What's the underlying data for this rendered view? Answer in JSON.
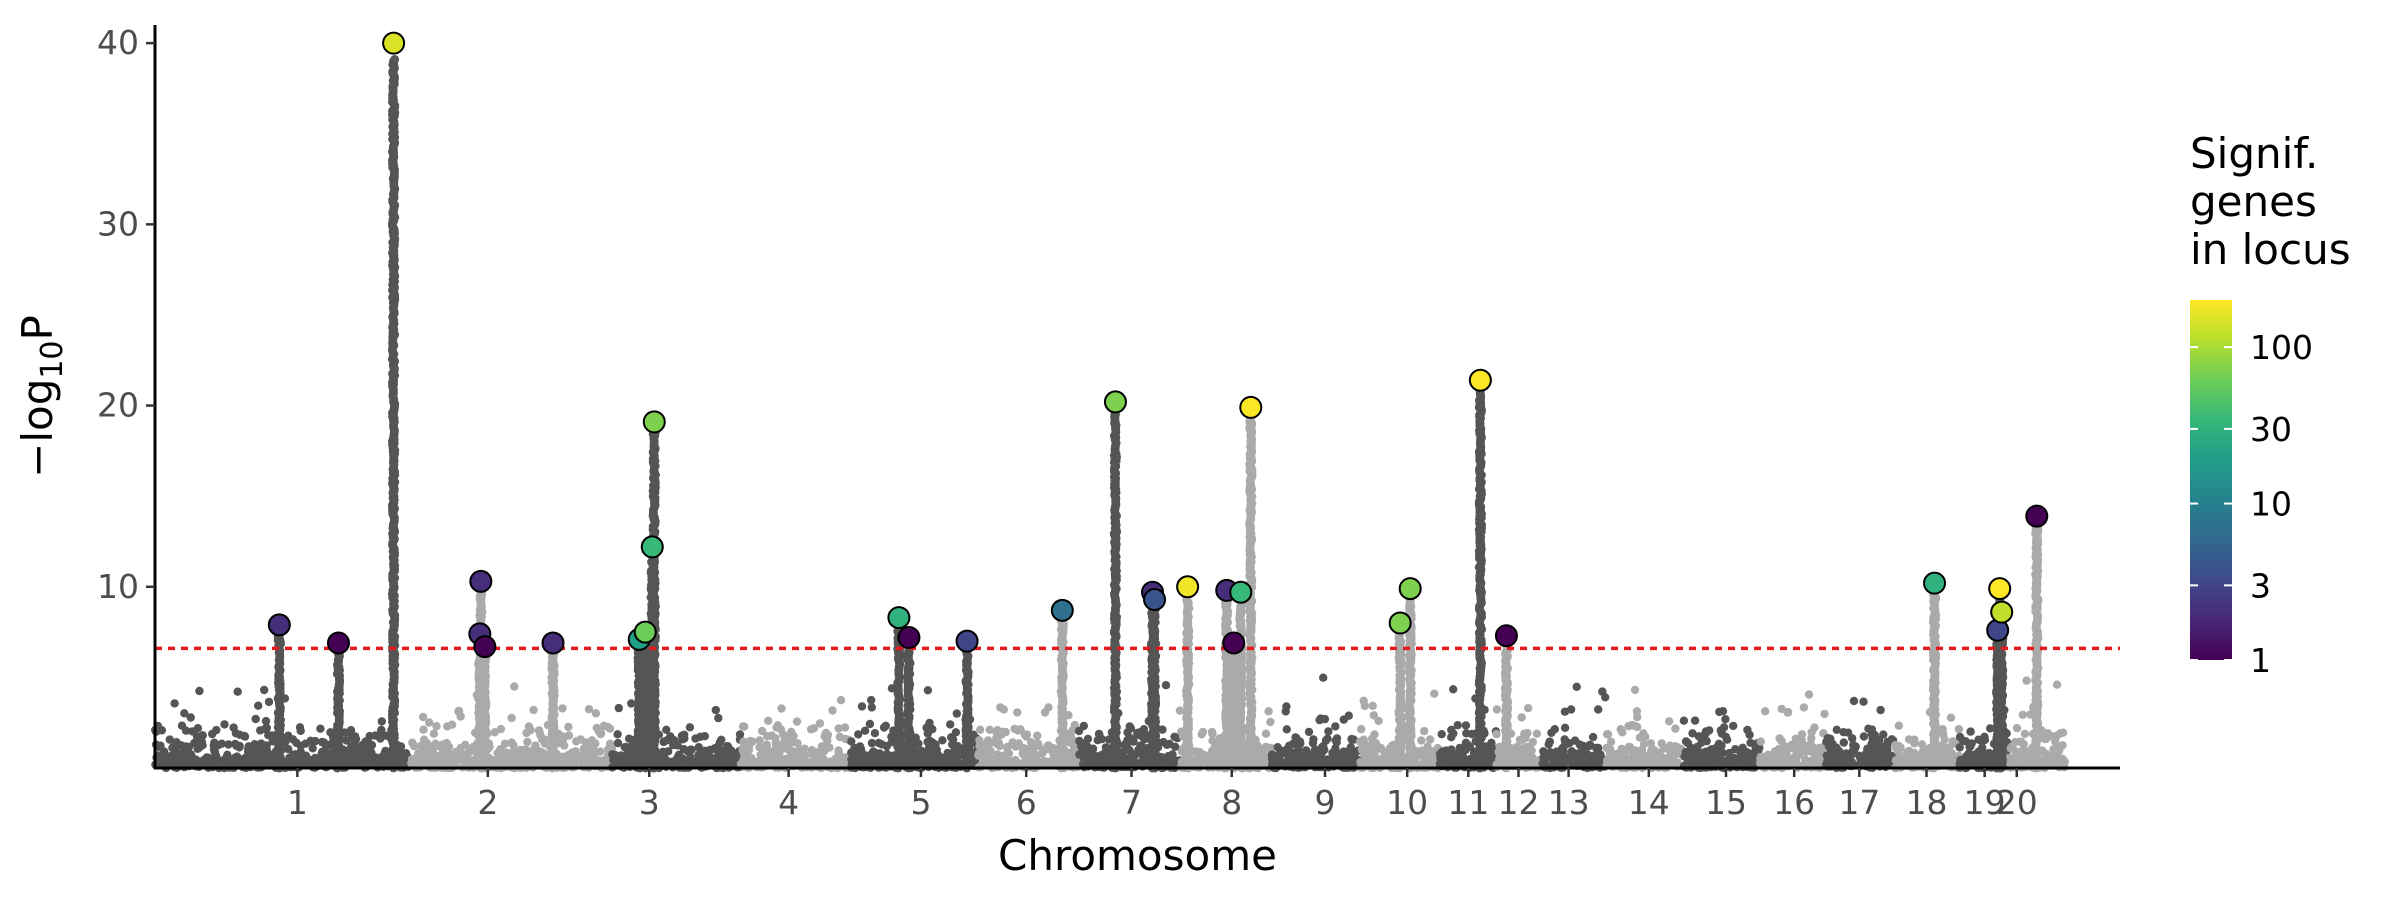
{
  "chart_data": {
    "type": "scatter",
    "subtype": "manhattan",
    "xlabel": "Chromosome",
    "ylabel_parts": {
      "prefix": "−log",
      "subscript": "10",
      "suffix": "P"
    },
    "ylim": [
      0,
      41
    ],
    "yticks": [
      10,
      20,
      30,
      40
    ],
    "significance_threshold": 6.6,
    "threshold_color": "#e41a1c",
    "chromosome_colors": [
      "#555555",
      "#aaaaaa"
    ],
    "chromosomes": [
      {
        "label": "1",
        "start": 0,
        "end": 255,
        "tick": 142
      },
      {
        "label": "2",
        "start": 255,
        "end": 456,
        "tick": 332
      },
      {
        "label": "3",
        "start": 456,
        "end": 584,
        "tick": 493
      },
      {
        "label": "4",
        "start": 584,
        "end": 694,
        "tick": 632
      },
      {
        "label": "5",
        "start": 694,
        "end": 821,
        "tick": 764
      },
      {
        "label": "6",
        "start": 821,
        "end": 921,
        "tick": 869
      },
      {
        "label": "7",
        "start": 921,
        "end": 1022,
        "tick": 974
      },
      {
        "label": "8",
        "start": 1022,
        "end": 1114,
        "tick": 1074
      },
      {
        "label": "9",
        "start": 1114,
        "end": 1202,
        "tick": 1167
      },
      {
        "label": "10",
        "start": 1202,
        "end": 1281,
        "tick": 1249
      },
      {
        "label": "11",
        "start": 1281,
        "end": 1338,
        "tick": 1310
      },
      {
        "label": "12",
        "start": 1338,
        "end": 1384,
        "tick": 1360
      },
      {
        "label": "13",
        "start": 1384,
        "end": 1448,
        "tick": 1410
      },
      {
        "label": "14",
        "start": 1448,
        "end": 1525,
        "tick": 1490
      },
      {
        "label": "15",
        "start": 1525,
        "end": 1601,
        "tick": 1567
      },
      {
        "label": "16",
        "start": 1601,
        "end": 1667,
        "tick": 1635
      },
      {
        "label": "17",
        "start": 1667,
        "end": 1735,
        "tick": 1700
      },
      {
        "label": "18",
        "start": 1735,
        "end": 1800,
        "tick": 1767
      },
      {
        "label": "19",
        "start": 1800,
        "end": 1848,
        "tick": 1825
      },
      {
        "label": "20",
        "start": 1848,
        "end": 1905,
        "tick": 1857
      }
    ],
    "peaks": [
      {
        "x": 124,
        "y": 7.9,
        "c": 2
      },
      {
        "x": 183,
        "y": 6.9,
        "c": 1
      },
      {
        "x": 238,
        "y": 40,
        "c": 150
      },
      {
        "x": 324,
        "y": 7.4,
        "c": 2
      },
      {
        "x": 325,
        "y": 10.3,
        "c": 2
      },
      {
        "x": 329,
        "y": 6.7,
        "c": 1
      },
      {
        "x": 397,
        "y": 6.9,
        "c": 2
      },
      {
        "x": 483,
        "y": 7.1,
        "c": 20
      },
      {
        "x": 489,
        "y": 7.5,
        "c": 60
      },
      {
        "x": 496,
        "y": 12.2,
        "c": 35
      },
      {
        "x": 498,
        "y": 19.1,
        "c": 70
      },
      {
        "x": 742,
        "y": 8.3,
        "c": 30
      },
      {
        "x": 752,
        "y": 7.2,
        "c": 1
      },
      {
        "x": 810,
        "y": 7.0,
        "c": 3
      },
      {
        "x": 905,
        "y": 8.7,
        "c": 7
      },
      {
        "x": 958,
        "y": 20.2,
        "c": 70
      },
      {
        "x": 995,
        "y": 9.7,
        "c": 2
      },
      {
        "x": 997,
        "y": 9.3,
        "c": 4
      },
      {
        "x": 1030,
        "y": 10.0,
        "c": 180
      },
      {
        "x": 1069,
        "y": 9.8,
        "c": 2
      },
      {
        "x": 1076,
        "y": 6.9,
        "c": 1
      },
      {
        "x": 1083,
        "y": 9.7,
        "c": 35
      },
      {
        "x": 1093,
        "y": 19.9,
        "c": 200
      },
      {
        "x": 1242,
        "y": 8.0,
        "c": 70
      },
      {
        "x": 1252,
        "y": 9.9,
        "c": 70
      },
      {
        "x": 1322,
        "y": 21.4,
        "c": 200
      },
      {
        "x": 1348,
        "y": 7.3,
        "c": 1
      },
      {
        "x": 1775,
        "y": 10.2,
        "c": 30
      },
      {
        "x": 1838,
        "y": 7.6,
        "c": 3
      },
      {
        "x": 1840,
        "y": 9.9,
        "c": 200
      },
      {
        "x": 1842,
        "y": 8.6,
        "c": 120
      },
      {
        "x": 1877,
        "y": 13.9,
        "c": 1
      }
    ],
    "legend": {
      "title": [
        "Signif.",
        "genes",
        "in locus"
      ],
      "scale": "log",
      "range": [
        1,
        200
      ],
      "ticks": [
        {
          "value": 1,
          "label": "1"
        },
        {
          "value": 3,
          "label": "3"
        },
        {
          "value": 10,
          "label": "10"
        },
        {
          "value": 30,
          "label": "30"
        },
        {
          "value": 100,
          "label": "100"
        }
      ],
      "colormap": "viridis",
      "colors": [
        "#440154",
        "#482878",
        "#3e4989",
        "#31688e",
        "#26828e",
        "#1f9e89",
        "#35b779",
        "#6ece58",
        "#b5de2b",
        "#fde725"
      ]
    }
  }
}
